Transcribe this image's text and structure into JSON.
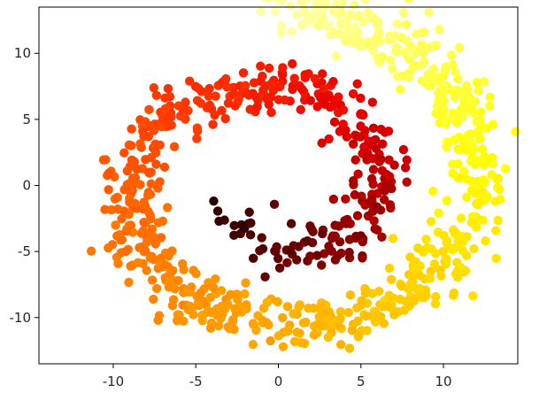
{
  "chart_data": {
    "type": "scatter",
    "title": "",
    "xlabel": "",
    "ylabel": "",
    "xlim": [
      -14.5,
      14.5
    ],
    "ylim": [
      -13.5,
      13.5
    ],
    "xticks": [
      -10,
      -5,
      0,
      5,
      10
    ],
    "yticks": [
      -10,
      -5,
      0,
      5,
      10
    ],
    "xtick_labels": [
      "-10",
      "-5",
      "0",
      "5",
      "10"
    ],
    "ytick_labels": [
      "-10",
      "-5",
      "0",
      "5",
      "10"
    ],
    "grid": false,
    "legend": "none",
    "colormap": "hot",
    "color_by": "position along spiral (dark center to pale outer end)",
    "colormap_stops": [
      "#0b0000",
      "#4d0000",
      "#990000",
      "#e60000",
      "#ff3300",
      "#ff7700",
      "#ffbb00",
      "#ffff00",
      "#ffffaa"
    ],
    "spiral": {
      "angle_start_rad": 3.0,
      "angle_end_rad": 14.1,
      "radius_scale": 0.95,
      "jitter": 1.0
    },
    "point_count": 1000,
    "random_seed": 7
  }
}
